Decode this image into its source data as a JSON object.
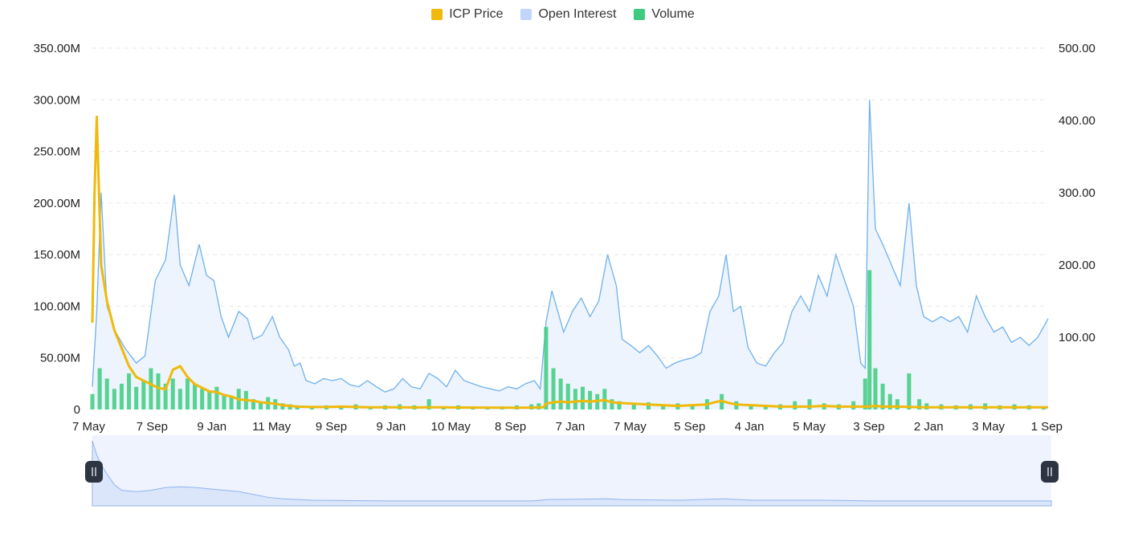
{
  "legend": [
    {
      "label": "ICP Price",
      "color": "#F0B90B"
    },
    {
      "label": "Open Interest",
      "color": "#C2D5FB"
    },
    {
      "label": "Volume",
      "color": "#3CCB7F"
    }
  ],
  "chart_data": {
    "type": "line",
    "x_tick_labels": [
      "7 May",
      "7 Sep",
      "9 Jan",
      "11 May",
      "9 Sep",
      "9 Jan",
      "10 May",
      "8 Sep",
      "7 Jan",
      "7 May",
      "5 Sep",
      "4 Jan",
      "5 May",
      "3 Sep",
      "2 Jan",
      "3 May",
      "1 Sep"
    ],
    "y_left": {
      "ticks": [
        "0",
        "50.00M",
        "100.00M",
        "150.00M",
        "200.00M",
        "250.00M",
        "300.00M",
        "350.00M"
      ],
      "range": [
        0,
        350000000
      ]
    },
    "y_right": {
      "ticks": [
        "100.00",
        "200.00",
        "300.00",
        "400.00",
        "500.00"
      ],
      "range": [
        0,
        500
      ]
    },
    "grid": true,
    "legend_position": "top-center",
    "series": [
      {
        "name": "Open Interest",
        "axis": "left",
        "style": "area",
        "points": [
          [
            0,
            22
          ],
          [
            0.3,
            95
          ],
          [
            0.6,
            210
          ],
          [
            1,
            100
          ],
          [
            1.6,
            75
          ],
          [
            2.2,
            60
          ],
          [
            3,
            45
          ],
          [
            3.6,
            52
          ],
          [
            4.3,
            125
          ],
          [
            5,
            145
          ],
          [
            5.6,
            208
          ],
          [
            6,
            140
          ],
          [
            6.6,
            120
          ],
          [
            7.3,
            160
          ],
          [
            7.8,
            130
          ],
          [
            8.3,
            125
          ],
          [
            8.8,
            90
          ],
          [
            9.3,
            70
          ],
          [
            10,
            95
          ],
          [
            10.6,
            88
          ],
          [
            11,
            68
          ],
          [
            11.6,
            72
          ],
          [
            12.3,
            90
          ],
          [
            12.8,
            70
          ],
          [
            13.4,
            58
          ],
          [
            13.8,
            42
          ],
          [
            14.2,
            45
          ],
          [
            14.6,
            28
          ],
          [
            15.2,
            25
          ],
          [
            15.8,
            30
          ],
          [
            16.4,
            28
          ],
          [
            17,
            30
          ],
          [
            17.6,
            24
          ],
          [
            18.2,
            22
          ],
          [
            18.8,
            28
          ],
          [
            19.4,
            22
          ],
          [
            20,
            17
          ],
          [
            20.6,
            20
          ],
          [
            21.2,
            30
          ],
          [
            21.8,
            22
          ],
          [
            22.4,
            20
          ],
          [
            23,
            35
          ],
          [
            23.6,
            30
          ],
          [
            24.2,
            22
          ],
          [
            24.8,
            38
          ],
          [
            25.4,
            28
          ],
          [
            26,
            25
          ],
          [
            26.6,
            22
          ],
          [
            27.2,
            20
          ],
          [
            27.8,
            18
          ],
          [
            28.4,
            22
          ],
          [
            29,
            20
          ],
          [
            29.6,
            25
          ],
          [
            30.2,
            28
          ],
          [
            30.6,
            20
          ],
          [
            31,
            85
          ],
          [
            31.4,
            115
          ],
          [
            31.8,
            95
          ],
          [
            32.2,
            75
          ],
          [
            32.8,
            95
          ],
          [
            33.4,
            108
          ],
          [
            34,
            90
          ],
          [
            34.6,
            105
          ],
          [
            35.2,
            150
          ],
          [
            35.8,
            120
          ],
          [
            36.2,
            68
          ],
          [
            36.8,
            62
          ],
          [
            37.4,
            55
          ],
          [
            38,
            62
          ],
          [
            38.6,
            52
          ],
          [
            39.2,
            40
          ],
          [
            39.8,
            45
          ],
          [
            40.4,
            48
          ],
          [
            41,
            50
          ],
          [
            41.6,
            55
          ],
          [
            42.2,
            95
          ],
          [
            42.8,
            110
          ],
          [
            43.3,
            150
          ],
          [
            43.8,
            95
          ],
          [
            44.3,
            100
          ],
          [
            44.8,
            60
          ],
          [
            45.4,
            45
          ],
          [
            46,
            42
          ],
          [
            46.6,
            55
          ],
          [
            47.2,
            65
          ],
          [
            47.8,
            95
          ],
          [
            48.4,
            110
          ],
          [
            49,
            95
          ],
          [
            49.6,
            130
          ],
          [
            50.2,
            110
          ],
          [
            50.8,
            150
          ],
          [
            51.4,
            125
          ],
          [
            52,
            100
          ],
          [
            52.5,
            45
          ],
          [
            52.8,
            40
          ],
          [
            53.1,
            300
          ],
          [
            53.5,
            175
          ],
          [
            54,
            160
          ],
          [
            54.6,
            140
          ],
          [
            55.2,
            120
          ],
          [
            55.8,
            200
          ],
          [
            56.3,
            120
          ],
          [
            56.8,
            90
          ],
          [
            57.4,
            85
          ],
          [
            58,
            90
          ],
          [
            58.6,
            85
          ],
          [
            59.2,
            90
          ],
          [
            59.8,
            75
          ],
          [
            60.4,
            110
          ],
          [
            61,
            90
          ],
          [
            61.6,
            75
          ],
          [
            62.2,
            80
          ],
          [
            62.8,
            65
          ],
          [
            63.4,
            70
          ],
          [
            64,
            62
          ],
          [
            64.6,
            70
          ],
          [
            65.3,
            88
          ]
        ]
      },
      {
        "name": "Volume",
        "axis": "left",
        "style": "bars",
        "points": [
          [
            0,
            15
          ],
          [
            0.5,
            40
          ],
          [
            1,
            30
          ],
          [
            1.5,
            20
          ],
          [
            2,
            25
          ],
          [
            2.5,
            35
          ],
          [
            3,
            22
          ],
          [
            3.5,
            28
          ],
          [
            4,
            40
          ],
          [
            4.5,
            35
          ],
          [
            5,
            25
          ],
          [
            5.5,
            30
          ],
          [
            6,
            20
          ],
          [
            6.5,
            30
          ],
          [
            7,
            25
          ],
          [
            7.5,
            20
          ],
          [
            8,
            18
          ],
          [
            8.5,
            22
          ],
          [
            9,
            15
          ],
          [
            9.5,
            12
          ],
          [
            10,
            20
          ],
          [
            10.5,
            18
          ],
          [
            11,
            10
          ],
          [
            11.5,
            8
          ],
          [
            12,
            12
          ],
          [
            12.5,
            10
          ],
          [
            13,
            6
          ],
          [
            13.5,
            5
          ],
          [
            14,
            4
          ],
          [
            15,
            3
          ],
          [
            16,
            4
          ],
          [
            17,
            3
          ],
          [
            18,
            5
          ],
          [
            19,
            3
          ],
          [
            20,
            4
          ],
          [
            21,
            5
          ],
          [
            22,
            4
          ],
          [
            23,
            10
          ],
          [
            24,
            3
          ],
          [
            25,
            4
          ],
          [
            26,
            3
          ],
          [
            27,
            2
          ],
          [
            28,
            3
          ],
          [
            29,
            4
          ],
          [
            30,
            5
          ],
          [
            30.5,
            6
          ],
          [
            31,
            80
          ],
          [
            31.5,
            40
          ],
          [
            32,
            30
          ],
          [
            32.5,
            25
          ],
          [
            33,
            20
          ],
          [
            33.5,
            22
          ],
          [
            34,
            18
          ],
          [
            34.5,
            15
          ],
          [
            35,
            20
          ],
          [
            35.5,
            10
          ],
          [
            36,
            8
          ],
          [
            37,
            6
          ],
          [
            38,
            7
          ],
          [
            39,
            5
          ],
          [
            40,
            6
          ],
          [
            41,
            4
          ],
          [
            42,
            10
          ],
          [
            43,
            15
          ],
          [
            44,
            8
          ],
          [
            45,
            5
          ],
          [
            46,
            4
          ],
          [
            47,
            5
          ],
          [
            48,
            8
          ],
          [
            49,
            10
          ],
          [
            50,
            6
          ],
          [
            51,
            5
          ],
          [
            52,
            8
          ],
          [
            52.8,
            30
          ],
          [
            53.1,
            135
          ],
          [
            53.5,
            40
          ],
          [
            54,
            25
          ],
          [
            54.5,
            15
          ],
          [
            55,
            10
          ],
          [
            55.8,
            35
          ],
          [
            56.5,
            10
          ],
          [
            57,
            6
          ],
          [
            58,
            5
          ],
          [
            59,
            4
          ],
          [
            60,
            5
          ],
          [
            61,
            6
          ],
          [
            62,
            4
          ],
          [
            63,
            5
          ],
          [
            64,
            4
          ],
          [
            65,
            3
          ]
        ]
      },
      {
        "name": "ICP Price",
        "axis": "right",
        "style": "line",
        "points": [
          [
            0,
            120
          ],
          [
            0.15,
            300
          ],
          [
            0.3,
            405
          ],
          [
            0.6,
            200
          ],
          [
            1,
            150
          ],
          [
            1.5,
            110
          ],
          [
            2,
            85
          ],
          [
            2.5,
            60
          ],
          [
            3,
            45
          ],
          [
            3.5,
            40
          ],
          [
            4,
            35
          ],
          [
            4.5,
            30
          ],
          [
            5,
            28
          ],
          [
            5.5,
            55
          ],
          [
            6,
            60
          ],
          [
            6.5,
            45
          ],
          [
            7,
            35
          ],
          [
            7.5,
            30
          ],
          [
            8,
            25
          ],
          [
            8.5,
            24
          ],
          [
            9,
            20
          ],
          [
            9.5,
            18
          ],
          [
            10,
            14
          ],
          [
            10.5,
            13
          ],
          [
            11,
            12
          ],
          [
            11.5,
            10
          ],
          [
            12,
            9
          ],
          [
            12.5,
            8
          ],
          [
            13,
            6
          ],
          [
            13.5,
            5
          ],
          [
            14,
            4
          ],
          [
            15,
            3.5
          ],
          [
            16,
            3.5
          ],
          [
            17,
            4
          ],
          [
            18,
            3.5
          ],
          [
            19,
            3
          ],
          [
            20,
            3
          ],
          [
            21,
            3
          ],
          [
            22,
            2.8
          ],
          [
            23,
            3
          ],
          [
            24,
            3
          ],
          [
            25,
            2.8
          ],
          [
            26,
            2.7
          ],
          [
            27,
            2.6
          ],
          [
            28,
            2.5
          ],
          [
            29,
            2.5
          ],
          [
            30,
            2.7
          ],
          [
            30.8,
            3
          ],
          [
            31,
            8
          ],
          [
            31.5,
            10
          ],
          [
            32,
            11
          ],
          [
            32.5,
            10
          ],
          [
            33,
            11
          ],
          [
            33.5,
            12
          ],
          [
            34,
            11
          ],
          [
            34.5,
            12
          ],
          [
            35,
            13
          ],
          [
            35.5,
            10
          ],
          [
            36,
            9
          ],
          [
            37,
            8
          ],
          [
            38,
            7
          ],
          [
            39,
            6
          ],
          [
            40,
            5
          ],
          [
            41,
            6
          ],
          [
            42,
            7
          ],
          [
            42.5,
            10
          ],
          [
            43,
            12
          ],
          [
            43.5,
            9
          ],
          [
            44,
            7
          ],
          [
            45,
            6
          ],
          [
            46,
            5
          ],
          [
            47,
            4
          ],
          [
            48,
            4
          ],
          [
            49,
            4
          ],
          [
            50,
            5
          ],
          [
            51,
            4
          ],
          [
            52,
            4
          ],
          [
            53,
            4
          ],
          [
            53.5,
            5
          ],
          [
            54,
            4
          ],
          [
            55,
            4
          ],
          [
            56,
            3.5
          ],
          [
            57,
            3
          ],
          [
            58,
            3
          ],
          [
            59,
            3
          ],
          [
            60,
            3
          ],
          [
            61,
            3
          ],
          [
            62,
            3
          ],
          [
            63,
            3
          ],
          [
            64,
            3
          ],
          [
            65.3,
            3
          ]
        ]
      }
    ],
    "navigator": {
      "points": [
        [
          0,
          0.92
        ],
        [
          0.3,
          0.72
        ],
        [
          0.6,
          0.58
        ],
        [
          1,
          0.45
        ],
        [
          1.5,
          0.3
        ],
        [
          2,
          0.22
        ],
        [
          3,
          0.2
        ],
        [
          4,
          0.22
        ],
        [
          5,
          0.26
        ],
        [
          6,
          0.27
        ],
        [
          7,
          0.26
        ],
        [
          8,
          0.24
        ],
        [
          9,
          0.22
        ],
        [
          10,
          0.2
        ],
        [
          11,
          0.16
        ],
        [
          12,
          0.12
        ],
        [
          13,
          0.1
        ],
        [
          15,
          0.08
        ],
        [
          20,
          0.07
        ],
        [
          25,
          0.07
        ],
        [
          30,
          0.07
        ],
        [
          31,
          0.09
        ],
        [
          35,
          0.1
        ],
        [
          36,
          0.09
        ],
        [
          40,
          0.08
        ],
        [
          43,
          0.1
        ],
        [
          45,
          0.08
        ],
        [
          50,
          0.08
        ],
        [
          53,
          0.07
        ],
        [
          55,
          0.07
        ],
        [
          60,
          0.07
        ],
        [
          65.3,
          0.07
        ]
      ]
    }
  }
}
